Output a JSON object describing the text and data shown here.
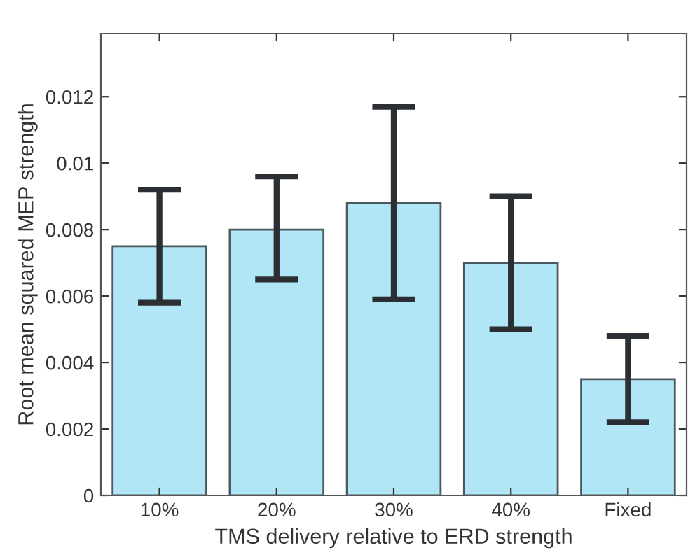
{
  "chart_data": {
    "type": "bar",
    "xlabel": "TMS delivery relative to ERD strength",
    "ylabel": "Root mean squared MEP strength",
    "categories": [
      "10%",
      "20%",
      "30%",
      "40%",
      "Fixed"
    ],
    "values": [
      0.0075,
      0.008,
      0.0088,
      0.007,
      0.0035
    ],
    "errors": [
      [
        0.0058,
        0.0092
      ],
      [
        0.0065,
        0.0096
      ],
      [
        0.0059,
        0.0117
      ],
      [
        0.005,
        0.009
      ],
      [
        0.0022,
        0.0048
      ]
    ],
    "color": "#b0e6f5",
    "ylim": [
      0,
      0.0139
    ],
    "yticks": [
      0,
      0.002,
      0.004,
      0.006,
      0.008,
      0.01,
      0.012
    ],
    "grid": false,
    "legend": false
  }
}
